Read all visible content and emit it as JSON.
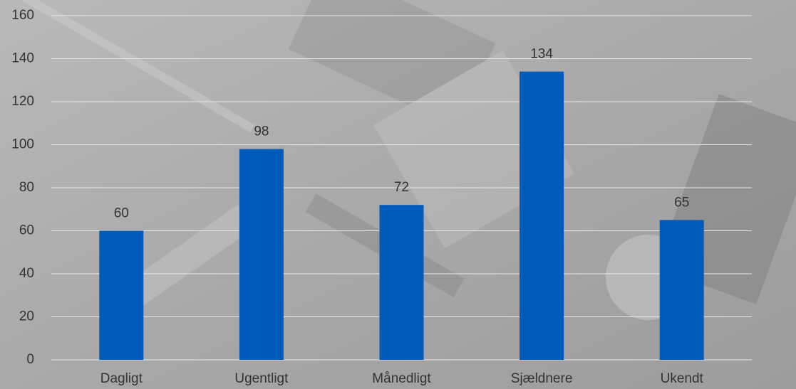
{
  "chart_data": {
    "type": "bar",
    "categories": [
      "Dagligt",
      "Ugentligt",
      "Månedligt",
      "Sjældnere",
      "Ukendt"
    ],
    "values": [
      60,
      98,
      72,
      134,
      65
    ],
    "color": "#005bbb",
    "ylim": [
      0,
      160
    ],
    "yticks": [
      0,
      20,
      40,
      60,
      80,
      100,
      120,
      140,
      160
    ],
    "grid": true
  }
}
